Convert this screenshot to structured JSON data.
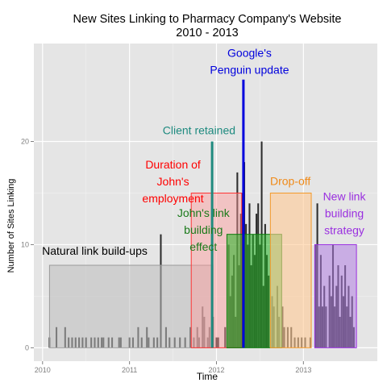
{
  "chart_data": {
    "type": "bar",
    "title_line1": "New Sites Linking to Pharmacy Company's Website",
    "title_line2": "2010 - 2013",
    "xlabel": "Time",
    "ylabel": "Number of Sites Linking",
    "xlim": [
      2009.9,
      2013.85
    ],
    "ylim": [
      -1.3,
      29.5
    ],
    "x_ticks": [
      {
        "value": 2010,
        "label": "2010"
      },
      {
        "value": 2011,
        "label": "2011"
      },
      {
        "value": 2012,
        "label": "2012"
      },
      {
        "value": 2013,
        "label": "2013"
      }
    ],
    "y_ticks": [
      {
        "value": 0,
        "label": "0"
      },
      {
        "value": 10,
        "label": "10"
      },
      {
        "value": 20,
        "label": "20"
      }
    ],
    "bar_width": 0.0192,
    "bars": [
      {
        "x": 2010.08,
        "y": 1
      },
      {
        "x": 2010.16,
        "y": 2
      },
      {
        "x": 2010.26,
        "y": 2
      },
      {
        "x": 2010.3,
        "y": 1
      },
      {
        "x": 2010.34,
        "y": 1
      },
      {
        "x": 2010.38,
        "y": 1
      },
      {
        "x": 2010.42,
        "y": 1
      },
      {
        "x": 2010.46,
        "y": 1
      },
      {
        "x": 2010.5,
        "y": 1
      },
      {
        "x": 2010.56,
        "y": 1
      },
      {
        "x": 2010.6,
        "y": 1
      },
      {
        "x": 2010.64,
        "y": 1
      },
      {
        "x": 2010.68,
        "y": 1
      },
      {
        "x": 2010.7,
        "y": 1
      },
      {
        "x": 2010.76,
        "y": 1
      },
      {
        "x": 2010.8,
        "y": 1
      },
      {
        "x": 2010.88,
        "y": 1
      },
      {
        "x": 2010.9,
        "y": 1
      },
      {
        "x": 2011.0,
        "y": 1
      },
      {
        "x": 2011.04,
        "y": 1
      },
      {
        "x": 2011.1,
        "y": 2
      },
      {
        "x": 2011.14,
        "y": 1
      },
      {
        "x": 2011.2,
        "y": 2
      },
      {
        "x": 2011.22,
        "y": 1
      },
      {
        "x": 2011.28,
        "y": 1
      },
      {
        "x": 2011.32,
        "y": 1
      },
      {
        "x": 2011.36,
        "y": 11
      },
      {
        "x": 2011.42,
        "y": 2
      },
      {
        "x": 2011.46,
        "y": 1
      },
      {
        "x": 2011.52,
        "y": 1
      },
      {
        "x": 2011.58,
        "y": 1
      },
      {
        "x": 2011.64,
        "y": 1
      },
      {
        "x": 2011.7,
        "y": 2
      },
      {
        "x": 2011.74,
        "y": 1
      },
      {
        "x": 2011.78,
        "y": 2
      },
      {
        "x": 2011.8,
        "y": 1
      },
      {
        "x": 2011.84,
        "y": 4
      },
      {
        "x": 2011.86,
        "y": 3
      },
      {
        "x": 2011.9,
        "y": 1
      },
      {
        "x": 2011.92,
        "y": 2
      },
      {
        "x": 2011.96,
        "y": 3
      },
      {
        "x": 2012.0,
        "y": 1
      },
      {
        "x": 2012.02,
        "y": 1
      },
      {
        "x": 2012.1,
        "y": 2
      },
      {
        "x": 2012.14,
        "y": 10
      },
      {
        "x": 2012.16,
        "y": 5
      },
      {
        "x": 2012.18,
        "y": 7
      },
      {
        "x": 2012.2,
        "y": 9
      },
      {
        "x": 2012.22,
        "y": 3
      },
      {
        "x": 2012.24,
        "y": 17
      },
      {
        "x": 2012.26,
        "y": 8
      },
      {
        "x": 2012.28,
        "y": 13
      },
      {
        "x": 2012.3,
        "y": 15
      },
      {
        "x": 2012.32,
        "y": 18
      },
      {
        "x": 2012.34,
        "y": 12
      },
      {
        "x": 2012.36,
        "y": 10
      },
      {
        "x": 2012.38,
        "y": 14
      },
      {
        "x": 2012.4,
        "y": 8
      },
      {
        "x": 2012.42,
        "y": 11
      },
      {
        "x": 2012.44,
        "y": 9
      },
      {
        "x": 2012.46,
        "y": 13
      },
      {
        "x": 2012.48,
        "y": 14
      },
      {
        "x": 2012.5,
        "y": 10
      },
      {
        "x": 2012.52,
        "y": 20
      },
      {
        "x": 2012.54,
        "y": 6
      },
      {
        "x": 2012.56,
        "y": 12
      },
      {
        "x": 2012.58,
        "y": 9
      },
      {
        "x": 2012.6,
        "y": 7
      },
      {
        "x": 2012.64,
        "y": 5
      },
      {
        "x": 2012.66,
        "y": 4
      },
      {
        "x": 2012.7,
        "y": 6
      },
      {
        "x": 2012.72,
        "y": 3
      },
      {
        "x": 2012.76,
        "y": 4
      },
      {
        "x": 2012.78,
        "y": 2
      },
      {
        "x": 2012.82,
        "y": 2
      },
      {
        "x": 2012.86,
        "y": 2
      },
      {
        "x": 2012.9,
        "y": 1
      },
      {
        "x": 2012.94,
        "y": 1
      },
      {
        "x": 2012.98,
        "y": 1
      },
      {
        "x": 2013.02,
        "y": 1
      },
      {
        "x": 2013.08,
        "y": 1
      },
      {
        "x": 2013.14,
        "y": 10
      },
      {
        "x": 2013.16,
        "y": 14
      },
      {
        "x": 2013.18,
        "y": 4
      },
      {
        "x": 2013.2,
        "y": 9
      },
      {
        "x": 2013.22,
        "y": 4
      },
      {
        "x": 2013.24,
        "y": 6
      },
      {
        "x": 2013.26,
        "y": 4
      },
      {
        "x": 2013.3,
        "y": 7
      },
      {
        "x": 2013.32,
        "y": 5
      },
      {
        "x": 2013.34,
        "y": 10
      },
      {
        "x": 2013.36,
        "y": 4
      },
      {
        "x": 2013.38,
        "y": 6
      },
      {
        "x": 2013.4,
        "y": 8
      },
      {
        "x": 2013.42,
        "y": 3
      },
      {
        "x": 2013.44,
        "y": 7
      },
      {
        "x": 2013.46,
        "y": 5
      },
      {
        "x": 2013.48,
        "y": 8
      },
      {
        "x": 2013.5,
        "y": 4
      },
      {
        "x": 2013.52,
        "y": 6
      },
      {
        "x": 2013.54,
        "y": 3
      },
      {
        "x": 2013.56,
        "y": 5
      },
      {
        "x": 2013.58,
        "y": 2
      }
    ],
    "regions": [
      {
        "name": "natural-build-up-region",
        "x0": 2010.08,
        "x1": 2011.96,
        "y0": 0,
        "y1": 8,
        "fill": "#bdbdbd",
        "stroke": "#9a9a9a",
        "opacity": 0.55
      },
      {
        "name": "johns-employment-region",
        "x0": 2011.71,
        "x1": 2012.29,
        "y0": 0,
        "y1": 15,
        "fill": "#ff9a9a",
        "stroke": "#ff3333",
        "opacity": 0.45
      },
      {
        "name": "johns-link-building-region",
        "x0": 2012.12,
        "x1": 2012.75,
        "y0": 0,
        "y1": 11,
        "fill": "#22b522",
        "stroke": "#0d7a0d",
        "opacity": 0.55
      },
      {
        "name": "drop-off-region",
        "x0": 2012.62,
        "x1": 2013.09,
        "y0": 0,
        "y1": 15,
        "fill": "#ffc994",
        "stroke": "#f39a2b",
        "opacity": 0.6
      },
      {
        "name": "new-link-building-region",
        "x0": 2013.13,
        "x1": 2013.61,
        "y0": 0,
        "y1": 10,
        "fill": "#b27fe3",
        "stroke": "#9a2fe0",
        "opacity": 0.55
      }
    ],
    "vlines": [
      {
        "name": "client-retained-line",
        "x": 2011.95,
        "y1": 20,
        "color": "#1e8a7f",
        "width": 3
      },
      {
        "name": "penguin-update-line",
        "x": 2012.31,
        "y1": 26,
        "color": "#0000dd",
        "width": 3
      }
    ],
    "annotations": [
      {
        "name": "natural-build-up-label",
        "lines": [
          "Natural link build-ups"
        ],
        "x": 2010.6,
        "y": 9.0,
        "color": "#000000"
      },
      {
        "name": "johns-employment-label",
        "lines": [
          "Duration of",
          "John's",
          "employment"
        ],
        "x": 2011.5,
        "y": 17.4,
        "color": "#ff0000"
      },
      {
        "name": "client-retained-label",
        "lines": [
          "Client retained"
        ],
        "x": 2011.8,
        "y": 20.7,
        "color": "#1e8a7f"
      },
      {
        "name": "penguin-update-label",
        "lines": [
          "Google's",
          "Penguin update"
        ],
        "x": 2012.38,
        "y": 28.2,
        "color": "#0000dd"
      },
      {
        "name": "johns-link-building-label",
        "lines": [
          "John's link",
          "building",
          "effect"
        ],
        "x": 2011.85,
        "y": 12.7,
        "color": "#1a7a1a"
      },
      {
        "name": "drop-off-label",
        "lines": [
          "Drop-off"
        ],
        "x": 2012.85,
        "y": 15.8,
        "color": "#f08a18"
      },
      {
        "name": "new-link-building-label",
        "lines": [
          "New link",
          "building",
          "strategy"
        ],
        "x": 2013.47,
        "y": 14.3,
        "color": "#9a2fe0"
      }
    ],
    "colors": {
      "panel": "#e5e5e5",
      "grid_major": "#ffffff",
      "grid_minor": "#f0f0f0",
      "bar": "#2d2d2d",
      "tick_text": "#7f7f7f"
    }
  }
}
